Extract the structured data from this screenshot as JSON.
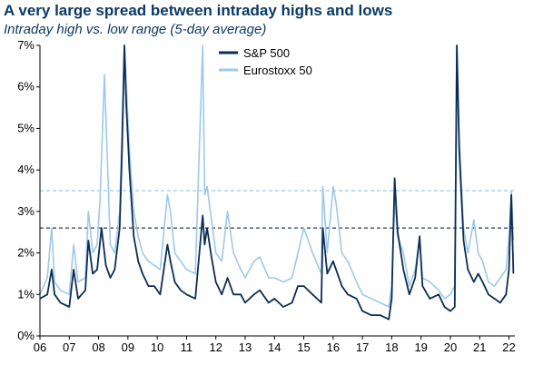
{
  "title": "A very large spread between intraday highs and lows",
  "subtitle": "Intraday high vs. low range (5-day average)",
  "colors": {
    "sp500": "#0b2d55",
    "eurostoxx": "#9ec9e8"
  },
  "chart_data": {
    "type": "line",
    "title": "A very large spread between intraday highs and lows",
    "subtitle": "Intraday high vs. low range (5-day average)",
    "xlabel": "",
    "ylabel": "",
    "x_ticks": [
      "06",
      "07",
      "08",
      "09",
      "10",
      "11",
      "12",
      "13",
      "14",
      "15",
      "16",
      "17",
      "18",
      "19",
      "20",
      "21",
      "22"
    ],
    "y_ticks": [
      "0%",
      "1%",
      "2%",
      "3%",
      "4%",
      "5%",
      "6%",
      "7%"
    ],
    "xlim": [
      2006.0,
      2022.2
    ],
    "ylim": [
      0,
      7
    ],
    "grid": false,
    "legend": "top-right",
    "reference_lines": [
      {
        "series": "S&P 500",
        "value": 2.6,
        "style": "dashed"
      },
      {
        "series": "Eurostoxx 50",
        "value": 3.5,
        "style": "dashed"
      }
    ],
    "series": [
      {
        "name": "S&P 500",
        "color": "#0b2d55",
        "x": [
          2006.0,
          2006.25,
          2006.4,
          2006.5,
          2006.7,
          2007.0,
          2007.15,
          2007.3,
          2007.55,
          2007.65,
          2007.8,
          2007.95,
          2008.1,
          2008.25,
          2008.4,
          2008.55,
          2008.72,
          2008.8,
          2008.88,
          2008.95,
          2009.05,
          2009.2,
          2009.35,
          2009.5,
          2009.7,
          2009.9,
          2010.1,
          2010.35,
          2010.45,
          2010.6,
          2010.8,
          2011.0,
          2011.3,
          2011.55,
          2011.62,
          2011.7,
          2011.85,
          2012.0,
          2012.2,
          2012.4,
          2012.6,
          2012.85,
          2013.0,
          2013.3,
          2013.5,
          2013.8,
          2014.0,
          2014.3,
          2014.6,
          2014.8,
          2015.0,
          2015.3,
          2015.6,
          2015.65,
          2015.8,
          2016.0,
          2016.1,
          2016.3,
          2016.5,
          2016.8,
          2017.0,
          2017.3,
          2017.6,
          2017.9,
          2018.0,
          2018.1,
          2018.2,
          2018.4,
          2018.6,
          2018.8,
          2018.95,
          2019.05,
          2019.3,
          2019.6,
          2019.8,
          2020.0,
          2020.15,
          2020.22,
          2020.3,
          2020.45,
          2020.6,
          2020.8,
          2020.95,
          2021.1,
          2021.3,
          2021.5,
          2021.7,
          2021.9,
          2022.0,
          2022.08,
          2022.15
        ],
        "values": [
          0.9,
          1.0,
          1.6,
          1.0,
          0.8,
          0.7,
          1.6,
          0.9,
          1.1,
          2.3,
          1.5,
          1.6,
          2.6,
          1.7,
          1.4,
          1.6,
          2.6,
          4.5,
          7.0,
          5.5,
          4.0,
          2.4,
          1.8,
          1.5,
          1.2,
          1.2,
          1.0,
          2.2,
          1.8,
          1.3,
          1.1,
          1.0,
          0.9,
          2.9,
          2.2,
          2.6,
          1.9,
          1.3,
          1.0,
          1.4,
          1.0,
          1.0,
          0.8,
          1.0,
          1.1,
          0.8,
          0.9,
          0.7,
          0.8,
          1.2,
          1.2,
          1.0,
          0.8,
          2.6,
          1.5,
          1.8,
          1.6,
          1.2,
          1.0,
          0.9,
          0.6,
          0.5,
          0.5,
          0.4,
          0.9,
          3.8,
          2.5,
          1.6,
          1.0,
          1.4,
          2.4,
          1.2,
          0.9,
          1.0,
          0.7,
          0.6,
          0.7,
          7.0,
          4.5,
          2.3,
          1.6,
          1.3,
          1.5,
          1.3,
          1.0,
          0.9,
          0.8,
          1.0,
          1.6,
          3.4,
          1.5
        ]
      },
      {
        "name": "Eurostoxx 50",
        "color": "#9ec9e8",
        "x": [
          2006.0,
          2006.25,
          2006.4,
          2006.5,
          2006.7,
          2007.0,
          2007.15,
          2007.3,
          2007.55,
          2007.65,
          2007.8,
          2007.95,
          2008.05,
          2008.2,
          2008.4,
          2008.55,
          2008.72,
          2008.8,
          2008.88,
          2008.95,
          2009.05,
          2009.2,
          2009.35,
          2009.5,
          2009.7,
          2009.9,
          2010.1,
          2010.35,
          2010.45,
          2010.6,
          2010.8,
          2011.0,
          2011.3,
          2011.55,
          2011.62,
          2011.7,
          2011.85,
          2012.0,
          2012.2,
          2012.4,
          2012.6,
          2012.85,
          2013.0,
          2013.3,
          2013.5,
          2013.8,
          2014.0,
          2014.3,
          2014.6,
          2014.8,
          2015.0,
          2015.3,
          2015.6,
          2015.65,
          2015.8,
          2016.0,
          2016.1,
          2016.3,
          2016.5,
          2016.8,
          2017.0,
          2017.3,
          2017.6,
          2017.9,
          2018.0,
          2018.1,
          2018.2,
          2018.4,
          2018.6,
          2018.8,
          2018.95,
          2019.05,
          2019.3,
          2019.6,
          2019.8,
          2020.0,
          2020.15,
          2020.22,
          2020.3,
          2020.45,
          2020.6,
          2020.8,
          2020.95,
          2021.1,
          2021.3,
          2021.5,
          2021.7,
          2021.9,
          2022.0,
          2022.08,
          2022.15
        ],
        "values": [
          1.0,
          1.4,
          2.6,
          1.3,
          1.1,
          1.0,
          2.2,
          1.3,
          1.4,
          3.0,
          2.0,
          2.2,
          3.3,
          6.3,
          2.2,
          2.0,
          3.0,
          5.0,
          7.0,
          6.0,
          4.5,
          3.0,
          2.4,
          2.0,
          1.8,
          1.7,
          1.6,
          3.4,
          3.0,
          2.0,
          1.8,
          1.6,
          1.5,
          7.0,
          3.4,
          3.6,
          2.8,
          2.0,
          1.8,
          3.0,
          2.0,
          1.6,
          1.4,
          1.8,
          1.9,
          1.4,
          1.4,
          1.3,
          1.4,
          2.0,
          2.6,
          2.0,
          1.5,
          3.6,
          2.0,
          3.6,
          3.2,
          2.0,
          1.8,
          1.3,
          1.0,
          0.9,
          0.8,
          0.7,
          1.2,
          3.3,
          2.4,
          2.0,
          1.2,
          1.6,
          2.3,
          1.4,
          1.3,
          1.1,
          0.9,
          1.0,
          1.2,
          7.0,
          4.8,
          2.6,
          2.0,
          2.8,
          2.0,
          1.8,
          1.3,
          1.2,
          1.4,
          1.6,
          2.4,
          3.5,
          2.3
        ]
      }
    ]
  }
}
